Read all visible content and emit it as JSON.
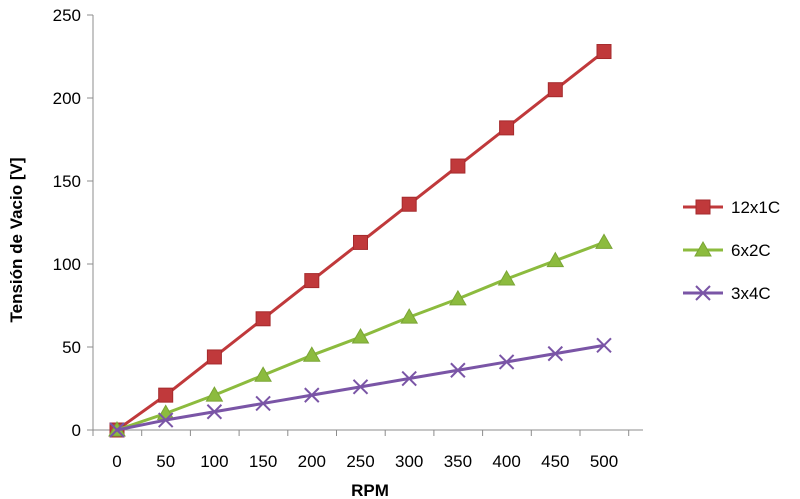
{
  "chart_data": {
    "type": "line",
    "xlabel": "RPM",
    "ylabel": "Tensión de Vacio [V]",
    "x": [
      0,
      50,
      100,
      150,
      200,
      250,
      300,
      350,
      400,
      450,
      500
    ],
    "xticks": [
      "0",
      "50",
      "100",
      "150",
      "200",
      "250",
      "300",
      "350",
      "400",
      "450",
      "500"
    ],
    "yticks": [
      "0",
      "50",
      "100",
      "150",
      "200",
      "250"
    ],
    "ylim": [
      0,
      250
    ],
    "grid": false,
    "legend_position": "right",
    "series": [
      {
        "name": "12x1C",
        "marker": "square",
        "color": "#c0393b",
        "values": [
          0,
          21,
          44,
          67,
          90,
          113,
          136,
          159,
          182,
          205,
          228
        ]
      },
      {
        "name": "6x2C",
        "marker": "triangle",
        "color": "#8cbb3e",
        "values": [
          0,
          10,
          21,
          33,
          45,
          56,
          68,
          79,
          91,
          102,
          113
        ]
      },
      {
        "name": "3x4C",
        "marker": "x",
        "color": "#7a55a6",
        "values": [
          0,
          6,
          11,
          16,
          21,
          26,
          31,
          36,
          41,
          46,
          51
        ]
      }
    ]
  }
}
